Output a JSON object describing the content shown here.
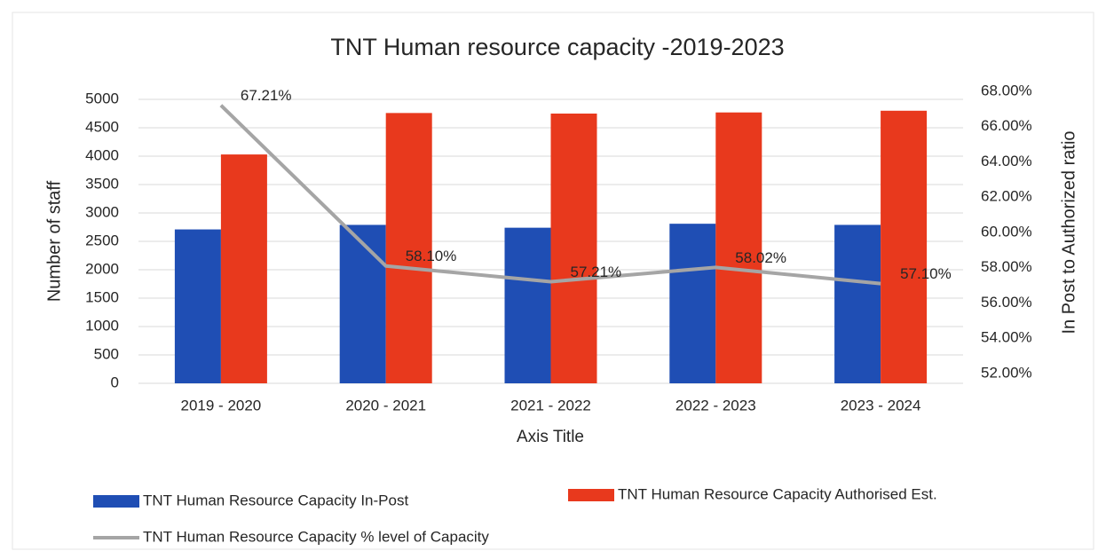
{
  "chart_data": {
    "type": "bar",
    "title": "TNT Human resource capacity -2019-2023",
    "x_label": "Axis Title",
    "y_label": "Number of staff",
    "y2_label": "In Post to Authorized ratio",
    "categories": [
      "2019 - 2020",
      "2020 - 2021",
      "2021 - 2022",
      "2022 - 2023",
      "2023 - 2024"
    ],
    "series": [
      {
        "name": "TNT Human Resource Capacity In-Post",
        "type": "bar",
        "color": "#1f4eb4",
        "values": [
          2710,
          2790,
          2740,
          2810,
          2790
        ]
      },
      {
        "name": "TNT Human Resource Capacity Authorised Est.",
        "type": "bar",
        "color": "#e8391d",
        "values": [
          4030,
          4760,
          4750,
          4770,
          4800
        ]
      },
      {
        "name": "TNT Human Resource Capacity % level of Capacity",
        "type": "line",
        "axis": "y2",
        "color": "#a5a5a5",
        "values": [
          67.21,
          58.1,
          57.21,
          58.02,
          57.1
        ],
        "value_labels": [
          "67.21%",
          "58.10%",
          "57.21%",
          "58.02%",
          "57.10%"
        ]
      }
    ],
    "ylim": [
      0,
      5000
    ],
    "yticks": [
      0,
      500,
      1000,
      1500,
      2000,
      2500,
      3000,
      3500,
      4000,
      4500,
      5000
    ],
    "y2lim": [
      52,
      68
    ],
    "y2ticks": [
      {
        "value": 52,
        "label": "52.00%"
      },
      {
        "value": 54,
        "label": "54.00%"
      },
      {
        "value": 56,
        "label": "56.00%"
      },
      {
        "value": 58,
        "label": "58.00%"
      },
      {
        "value": 60,
        "label": "60.00%"
      },
      {
        "value": 62,
        "label": "62.00%"
      },
      {
        "value": 64,
        "label": "64.00%"
      },
      {
        "value": 66,
        "label": "66.00%"
      },
      {
        "value": 68,
        "label": "68.00%"
      }
    ],
    "grid": true
  }
}
